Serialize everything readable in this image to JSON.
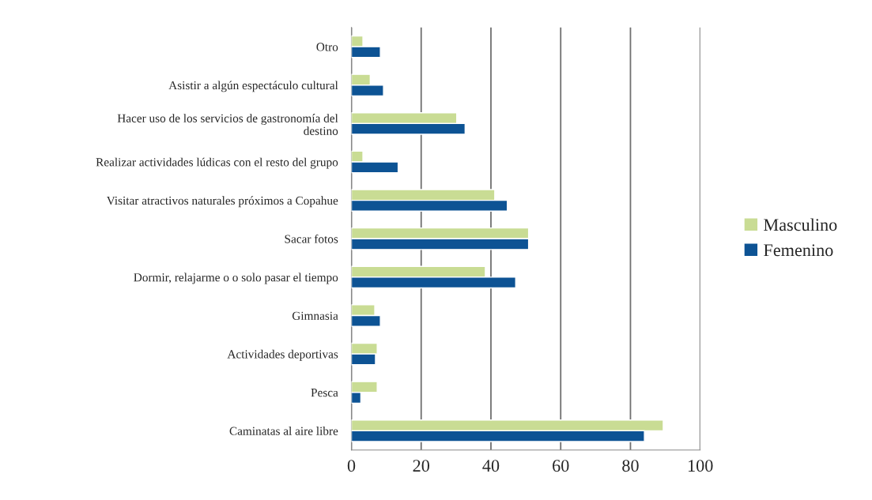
{
  "chart_data": {
    "type": "bar",
    "orientation": "horizontal",
    "categories": [
      "Otro",
      "Asistir a algún espectáculo cultural",
      "Hacer uso de los servicios de gastronomía del\ndestino",
      "Realizar actividades lúdicas con el resto del grupo",
      "Visitar atractivos naturales próximos a Copahue",
      "Sacar fotos",
      "Dormir, relajarme o o solo pasar el tiempo",
      "Gimnasia",
      "Actividades deportivas",
      "Pesca",
      "Caminatas al aire libre"
    ],
    "series": [
      {
        "name": "Masculino",
        "color": "#c9dc94",
        "values": [
          3.3,
          5.4,
          30.2,
          3.3,
          41.1,
          50.8,
          38.4,
          6.7,
          7.4,
          7.4,
          89.4
        ]
      },
      {
        "name": "Femenino",
        "color": "#0d5394",
        "values": [
          8.3,
          9.2,
          32.6,
          13.4,
          44.7,
          50.8,
          47.1,
          8.3,
          6.9,
          2.7,
          84.0
        ]
      }
    ],
    "xlim": [
      0,
      100
    ],
    "xticks": [
      0,
      20,
      40,
      60,
      80,
      100
    ],
    "grid": "x",
    "legend": "right"
  }
}
